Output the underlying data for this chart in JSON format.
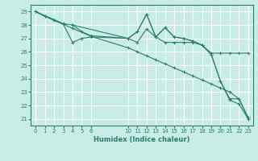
{
  "xlabel": "Humidex (Indice chaleur)",
  "bg_color": "#c8ece6",
  "grid_color": "#ffffff",
  "line_color": "#2e7d6e",
  "xlim": [
    -0.5,
    23.5
  ],
  "ylim": [
    20.5,
    29.5
  ],
  "xticks": [
    0,
    1,
    2,
    3,
    4,
    5,
    6,
    10,
    11,
    12,
    13,
    14,
    15,
    16,
    17,
    18,
    19,
    20,
    21,
    22,
    23
  ],
  "yticks": [
    21,
    22,
    23,
    24,
    25,
    26,
    27,
    28,
    29
  ],
  "series": [
    {
      "x": [
        0,
        1,
        2,
        3,
        4,
        6,
        10,
        11,
        12,
        13,
        14,
        15,
        16,
        17,
        18,
        19,
        20,
        21,
        22,
        23
      ],
      "y": [
        29.0,
        28.65,
        28.35,
        28.05,
        27.75,
        27.15,
        26.3,
        26.0,
        25.7,
        25.4,
        25.1,
        24.8,
        24.5,
        24.2,
        23.9,
        23.6,
        23.3,
        23.0,
        22.5,
        21.0
      ]
    },
    {
      "x": [
        0,
        1,
        2,
        3,
        4,
        5,
        6,
        10,
        11,
        12,
        13,
        14,
        15,
        16,
        17,
        18,
        19,
        20,
        21,
        22,
        23
      ],
      "y": [
        29.0,
        28.65,
        28.35,
        28.05,
        26.7,
        27.0,
        27.1,
        27.0,
        26.7,
        27.7,
        27.1,
        26.7,
        26.7,
        26.7,
        26.7,
        26.5,
        25.9,
        25.9,
        25.9,
        25.9,
        25.9
      ]
    },
    {
      "x": [
        0,
        3,
        4,
        10,
        11,
        12,
        13,
        14,
        15,
        16,
        17,
        18,
        19,
        20,
        21,
        22,
        23
      ],
      "y": [
        29.0,
        28.1,
        28.0,
        27.0,
        27.5,
        28.8,
        27.1,
        27.8,
        27.1,
        27.0,
        26.8,
        26.5,
        25.8,
        23.8,
        22.5,
        22.5,
        21.1
      ]
    },
    {
      "x": [
        4,
        5,
        6,
        10,
        11,
        12,
        13,
        14,
        15,
        16,
        17,
        18,
        19,
        20,
        21,
        22,
        23
      ],
      "y": [
        28.0,
        27.5,
        27.2,
        27.0,
        27.5,
        28.8,
        27.1,
        27.8,
        27.1,
        27.0,
        26.8,
        26.5,
        25.8,
        23.8,
        22.4,
        22.1,
        21.0
      ]
    }
  ]
}
